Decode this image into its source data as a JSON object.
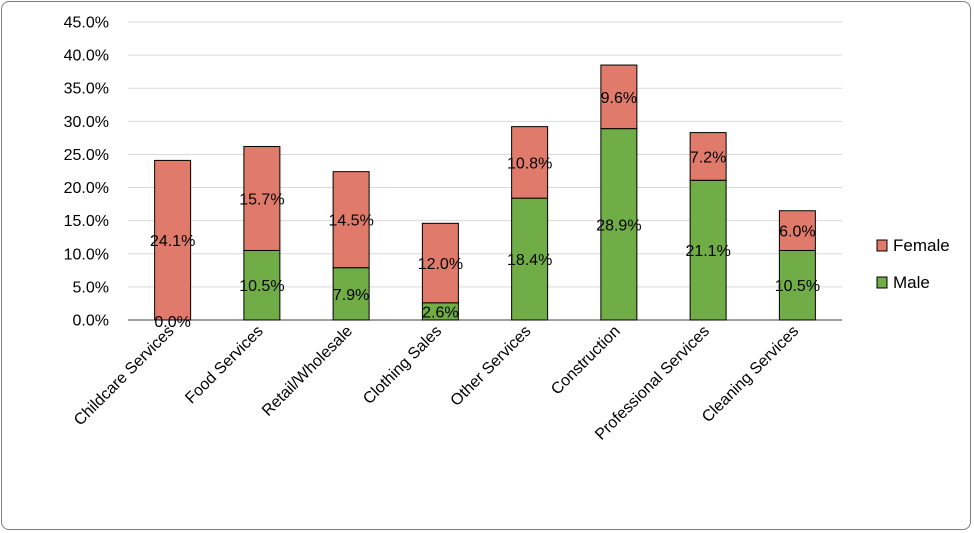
{
  "chart_data": {
    "type": "bar",
    "stacked": true,
    "categories": [
      "Childcare Services",
      "Food Services",
      "Retail/Wholesale",
      "Clothing Sales",
      "Other Services",
      "Construction",
      "Professional Services",
      "Cleaning Services"
    ],
    "series": [
      {
        "name": "Male",
        "values": [
          0.0,
          10.5,
          7.9,
          2.6,
          18.4,
          28.9,
          21.1,
          10.5
        ],
        "labels": [
          "0.0%",
          "10.5%",
          "7.9%",
          "2.6%",
          "18.4%",
          "28.9%",
          "21.1%",
          "10.5%"
        ],
        "color": "#70ad47"
      },
      {
        "name": "Female",
        "values": [
          24.1,
          15.7,
          14.5,
          12.0,
          10.8,
          9.6,
          7.2,
          6.0
        ],
        "labels": [
          "24.1%",
          "15.7%",
          "14.5%",
          "12.0%",
          "10.8%",
          "9.6%",
          "7.2%",
          "6.0%"
        ],
        "color": "#e07b6b"
      }
    ],
    "yticks": [
      "0.0%",
      "5.0%",
      "10.0%",
      "15.0%",
      "20.0%",
      "25.0%",
      "30.0%",
      "35.0%",
      "40.0%",
      "45.0%"
    ],
    "ylim": [
      0,
      45
    ],
    "grid": true,
    "legend_position": "right",
    "title": "",
    "xlabel": "",
    "ylabel": ""
  }
}
